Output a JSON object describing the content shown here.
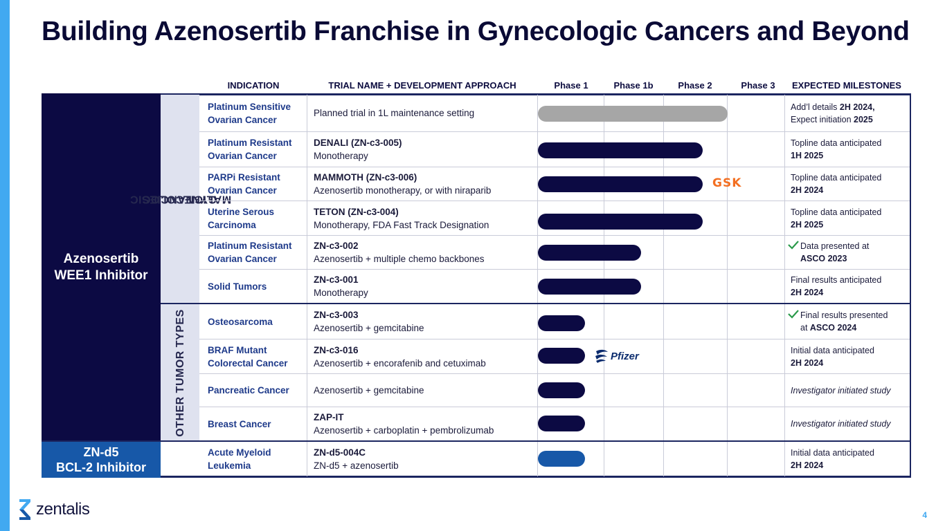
{
  "title": "Building Azenosertib Franchise in Gynecologic Cancers and Beyond",
  "columns": {
    "indication": "INDICATION",
    "trial": "TRIAL NAME + DEVELOPMENT APPROACH",
    "phase1": "Phase 1",
    "phase1b": "Phase 1b",
    "phase2": "Phase 2",
    "phase3": "Phase 3",
    "milestones": "EXPECTED MILESTONES"
  },
  "drugs": {
    "azenosertib_line1": "Azenosertib",
    "azenosertib_line2": "WEE1 Inhibitor",
    "znd5_line1": "ZN-d5",
    "znd5_line2": "BCL-2 Inhibitor"
  },
  "groups": {
    "gyn_line1": "GYNECOLOGIC",
    "gyn_line2": "MALIGNANCIES",
    "other": "OTHER TUMOR TYPES"
  },
  "partners": {
    "gsk": "GSK",
    "pfizer": "Pfizer"
  },
  "rows": [
    {
      "ind1": "Platinum Sensitive",
      "ind2": "Ovarian Cancer",
      "trial_name": "",
      "trial_desc": "Planned trial in 1L maintenance setting",
      "m_pre": "Add’l details ",
      "m_bold1": "2H 2024,",
      "m_mid": "Expect initiation ",
      "m_bold2": "2025",
      "phase_reached": "Phase 2",
      "bar_color": "grey"
    },
    {
      "ind1": "Platinum Resistant",
      "ind2": "Ovarian Cancer",
      "trial_name": "DENALI (ZN-c3-005)",
      "trial_desc": "Monotherapy",
      "m1": "Topline data anticipated",
      "m2": "1H 2025",
      "phase_reached": "Phase 2",
      "bar_color": "navy"
    },
    {
      "ind1": "PARPi Resistant",
      "ind2": "Ovarian Cancer",
      "trial_name": "MAMMOTH (ZN-c3-006)",
      "trial_desc": "Azenosertib monotherapy, or with niraparib",
      "m1": "Topline data anticipated",
      "m2": "2H 2024",
      "phase_reached": "Phase 2",
      "bar_color": "navy"
    },
    {
      "ind1": "Uterine Serous",
      "ind2": "Carcinoma",
      "trial_name": "TETON (ZN-c3-004)",
      "trial_desc": "Monotherapy, FDA Fast Track Designation",
      "m1": "Topline data anticipated",
      "m2": "2H 2025",
      "phase_reached": "Phase 2",
      "bar_color": "navy"
    },
    {
      "ind1": "Platinum Resistant",
      "ind2": "Ovarian Cancer",
      "trial_name": "ZN-c3-002",
      "trial_desc": "Azenosertib + multiple chemo backbones",
      "m1": "Data presented at",
      "m2": "ASCO 2023",
      "phase_reached": "Phase 1b",
      "bar_color": "navy"
    },
    {
      "ind1": "Solid Tumors",
      "ind2": "",
      "trial_name": "ZN-c3-001",
      "trial_desc": "Monotherapy",
      "m1": "Final results anticipated",
      "m2": "2H 2024",
      "phase_reached": "Phase 1b",
      "bar_color": "navy"
    },
    {
      "ind1": "Osteosarcoma",
      "ind2": "",
      "trial_name": "ZN-c3-003",
      "trial_desc": "Azenosertib + gemcitabine",
      "m1": "Final results presented",
      "m_pre2": "at ",
      "m2": "ASCO 2024",
      "phase_reached": "Phase 1",
      "bar_color": "navy"
    },
    {
      "ind1": "BRAF Mutant",
      "ind2": "Colorectal Cancer",
      "trial_name": "ZN-c3-016",
      "trial_desc": "Azenosertib + encorafenib and cetuximab",
      "m1": "Initial data anticipated",
      "m2": "2H 2024",
      "phase_reached": "Phase 1",
      "bar_color": "navy"
    },
    {
      "ind1": "Pancreatic Cancer",
      "ind2": "",
      "trial_name": "",
      "trial_desc": "Azenosertib + gemcitabine",
      "m_italic": "Investigator initiated study",
      "phase_reached": "Phase 1",
      "bar_color": "navy"
    },
    {
      "ind1": "Breast Cancer",
      "ind2": "",
      "trial_name": "ZAP-IT",
      "trial_desc": "Azenosertib + carboplatin + pembrolizumab",
      "m_italic": "Investigator initiated study",
      "phase_reached": "Phase 1",
      "bar_color": "navy"
    },
    {
      "ind1": "Acute Myeloid",
      "ind2": "Leukemia",
      "trial_name": "ZN-d5-004C",
      "trial_desc": "ZN-d5 + azenosertib",
      "m1": "Initial data anticipated",
      "m2": "2H 2024",
      "phase_reached": "Phase 1",
      "bar_color": "blue"
    }
  ],
  "footer": {
    "logo_text": "zentalis",
    "page_number": "4"
  }
}
